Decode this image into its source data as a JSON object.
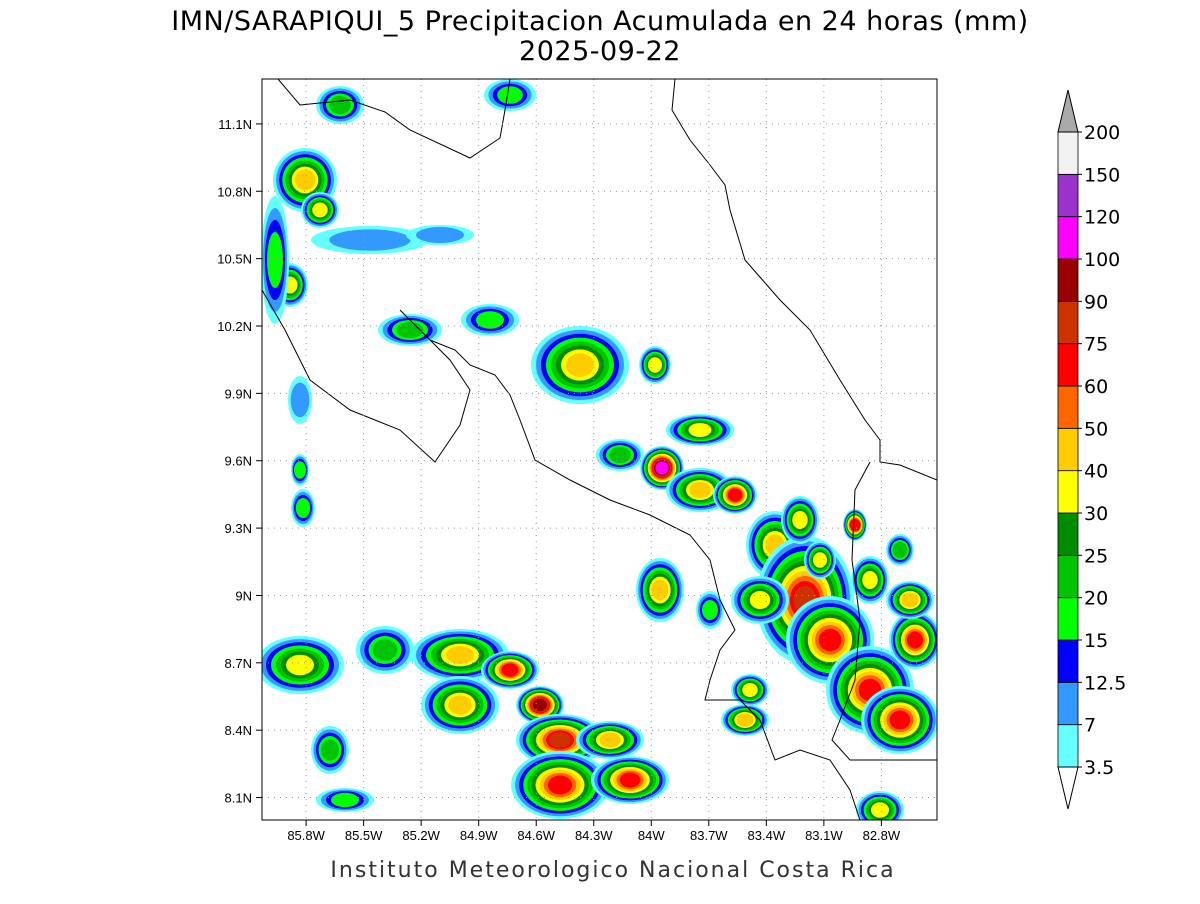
{
  "header": {
    "title": "IMN/SARAPIQUI_5 Precipitacion Acumulada en 24 horas (mm)",
    "date": "2025-09-22"
  },
  "map": {
    "lonlim": [
      -86.03,
      -82.51
    ],
    "latlim": [
      8.0,
      11.3
    ],
    "grid": true,
    "lon_ticks": [
      {
        "value": -85.8,
        "label": "85.8W"
      },
      {
        "value": -85.5,
        "label": "85.5W"
      },
      {
        "value": -85.2,
        "label": "85.2W"
      },
      {
        "value": -84.9,
        "label": "84.9W"
      },
      {
        "value": -84.6,
        "label": "84.6W"
      },
      {
        "value": -84.3,
        "label": "84.3W"
      },
      {
        "value": -84,
        "label": "84W"
      },
      {
        "value": -83.7,
        "label": "83.7W"
      },
      {
        "value": -83.4,
        "label": "83.4W"
      },
      {
        "value": -83.1,
        "label": "83.1W"
      },
      {
        "value": -82.8,
        "label": "82.8W"
      }
    ],
    "lat_ticks": [
      {
        "value": 11.1,
        "label": "11.1N"
      },
      {
        "value": 10.8,
        "label": "10.8N"
      },
      {
        "value": 10.5,
        "label": "10.5N"
      },
      {
        "value": 10.2,
        "label": "10.2N"
      },
      {
        "value": 9.9,
        "label": "9.9N"
      },
      {
        "value": 9.6,
        "label": "9.6N"
      },
      {
        "value": 9.3,
        "label": "9.3N"
      },
      {
        "value": 9,
        "label": "9N"
      },
      {
        "value": 8.7,
        "label": "8.7N"
      },
      {
        "value": 8.4,
        "label": "8.4N"
      },
      {
        "value": 8.1,
        "label": "8.1N"
      }
    ]
  },
  "colorbar": {
    "levels": [
      3.5,
      7,
      12.5,
      15,
      20,
      25,
      30,
      40,
      50,
      60,
      75,
      90,
      100,
      120,
      150,
      200
    ],
    "colors": [
      "#66ffff",
      "#3399ff",
      "#0000ff",
      "#00ff00",
      "#00c400",
      "#008c00",
      "#ffff00",
      "#ffcc00",
      "#ff6600",
      "#ff0000",
      "#cc3300",
      "#990000",
      "#ff00ff",
      "#9933cc",
      "#f2f2f2"
    ],
    "under_color": "#ffffff",
    "over_color": "#aaaaaa"
  },
  "footer": "Instituto Meteorologico Nacional Costa Rica"
}
